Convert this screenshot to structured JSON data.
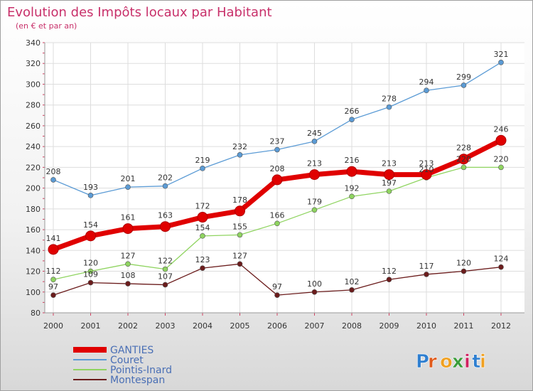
{
  "title": "Evolution des Impôts locaux par Habitant",
  "subtitle": "(en € et par an)",
  "brand": "Proxiti",
  "chart_data": {
    "type": "line",
    "title": "Evolution des Impôts locaux par Habitant",
    "subtitle": "(en € et par an)",
    "categories": [
      "2000",
      "2001",
      "2002",
      "2003",
      "2004",
      "2005",
      "2006",
      "2007",
      "2008",
      "2009",
      "2010",
      "2011",
      "2012"
    ],
    "ylim": [
      80,
      340
    ],
    "yticks": [
      80,
      100,
      120,
      140,
      160,
      180,
      200,
      220,
      240,
      260,
      280,
      300,
      320,
      340
    ],
    "grid": true,
    "legend_position": "bottom-left",
    "series": [
      {
        "name": "GANTIES",
        "color": "#e00000",
        "values": [
          141,
          154,
          161,
          163,
          172,
          178,
          208,
          213,
          216,
          213,
          213,
          228,
          246
        ]
      },
      {
        "name": "Couret",
        "color": "#5b9bd5",
        "values": [
          208,
          193,
          201,
          202,
          219,
          232,
          237,
          245,
          266,
          278,
          294,
          299,
          321
        ]
      },
      {
        "name": "Pointis-Inard",
        "color": "#8fd460",
        "values": [
          112,
          120,
          127,
          122,
          154,
          155,
          166,
          179,
          192,
          197,
          210,
          220,
          220
        ]
      },
      {
        "name": "Montespan",
        "color": "#6b1c1c",
        "values": [
          97,
          109,
          108,
          107,
          123,
          127,
          97,
          100,
          102,
          112,
          117,
          120,
          124
        ]
      }
    ]
  }
}
